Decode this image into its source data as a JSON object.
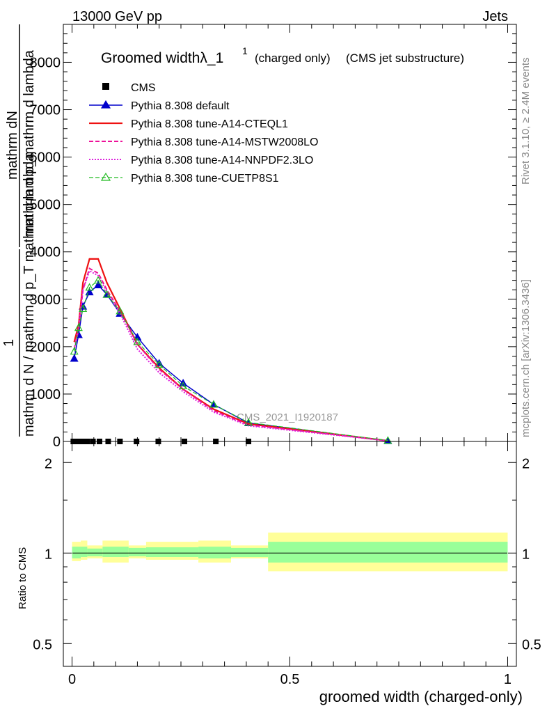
{
  "header": {
    "energy_label": "13000 GeV pp",
    "category_label": "Jets"
  },
  "side_text": {
    "rivet": "Rivet 3.1.10, ≥ 2.4M events",
    "mcplots": "mcplots.cern.ch [arXiv:1306.3436]"
  },
  "colors": {
    "cms": "#000000",
    "default": "#0000cc",
    "a14_cteql1": "#ee1111",
    "a14_mstw": "#ee1199",
    "a14_nnpdf": "#dd22dd",
    "cuetp8s1": "#22bb22",
    "band_inner": "#99ff99",
    "band_outer": "#ffff99"
  },
  "chart_data": [
    {
      "type": "line",
      "title": "Groomed widthλ_1",
      "title_superscript": "1",
      "title_suffix_1": "(charged only)",
      "title_suffix_2": "(CMS jet substructure)",
      "ylabel_numerator": "mathrm dN",
      "ylabel_denominator": "mathrm d p_mathrm d lambda",
      "ylabel_prefix_num": "1",
      "ylabel_prefix_den": "mathrm d N / mathrm d p_T mathrm d lambda",
      "watermark": "CMS_2021_I1920187",
      "xlim": [
        -0.02,
        1.02
      ],
      "ylim": [
        0,
        8800
      ],
      "yticks": [
        0,
        1000,
        2000,
        3000,
        4000,
        5000,
        6000,
        7000,
        8000
      ],
      "ytick_labels": [
        "0",
        "1000",
        "2000",
        "3000",
        "4000",
        "5000",
        "6000",
        "7000",
        "8000"
      ],
      "legend_position": "top-left",
      "legend": [
        {
          "key": "cms",
          "label": "CMS"
        },
        {
          "key": "default",
          "label": "Pythia 8.308 default"
        },
        {
          "key": "a14_cteql1",
          "label": "Pythia 8.308 tune-A14-CTEQL1"
        },
        {
          "key": "a14_mstw",
          "label": "Pythia 8.308 tune-A14-MSTW2008LO"
        },
        {
          "key": "a14_nnpdf",
          "label": "Pythia 8.308 tune-A14-NNPDF2.3LO"
        },
        {
          "key": "cuetp8s1",
          "label": "Pythia 8.308 tune-CUETP8S1"
        }
      ],
      "cms_points": {
        "x": [
          0.003,
          0.012,
          0.023,
          0.035,
          0.048,
          0.063,
          0.083,
          0.11,
          0.148,
          0.198,
          0.258,
          0.33,
          0.405
        ],
        "y": [
          0,
          0,
          0,
          0,
          0,
          0,
          0,
          0,
          0,
          0,
          0,
          0,
          0
        ]
      },
      "series": [
        {
          "key": "default",
          "x": [
            0.005,
            0.015,
            0.025,
            0.04,
            0.06,
            0.08,
            0.11,
            0.15,
            0.2,
            0.255,
            0.325,
            0.405,
            0.725
          ],
          "y": [
            1750,
            2250,
            2850,
            3150,
            3300,
            3100,
            2700,
            2200,
            1650,
            1230,
            780,
            390,
            15
          ]
        },
        {
          "key": "a14_cteql1",
          "x": [
            0.005,
            0.015,
            0.025,
            0.04,
            0.06,
            0.08,
            0.11,
            0.15,
            0.2,
            0.255,
            0.325,
            0.405,
            0.725
          ],
          "y": [
            2100,
            2450,
            3350,
            3850,
            3850,
            3350,
            2800,
            2050,
            1550,
            1100,
            680,
            370,
            15
          ]
        },
        {
          "key": "a14_mstw",
          "x": [
            0.005,
            0.015,
            0.025,
            0.04,
            0.06,
            0.08,
            0.11,
            0.15,
            0.2,
            0.255,
            0.325,
            0.405,
            0.725
          ],
          "y": [
            1950,
            2350,
            3200,
            3650,
            3550,
            3200,
            2750,
            2050,
            1520,
            1100,
            650,
            350,
            15
          ]
        },
        {
          "key": "a14_nnpdf",
          "x": [
            0.005,
            0.015,
            0.025,
            0.04,
            0.06,
            0.08,
            0.11,
            0.15,
            0.2,
            0.255,
            0.325,
            0.405,
            0.725
          ],
          "y": [
            1950,
            2400,
            3200,
            3600,
            3500,
            3150,
            2700,
            1950,
            1450,
            1050,
            620,
            330,
            15
          ]
        },
        {
          "key": "cuetp8s1",
          "x": [
            0.005,
            0.015,
            0.025,
            0.04,
            0.06,
            0.08,
            0.11,
            0.15,
            0.2,
            0.255,
            0.325,
            0.405,
            0.725
          ],
          "y": [
            1900,
            2400,
            2800,
            3250,
            3400,
            3100,
            2750,
            2100,
            1620,
            1170,
            780,
            400,
            20
          ]
        }
      ]
    },
    {
      "type": "area",
      "ylabel": "Ratio to CMS",
      "xlabel": "groomed width (charged-only)",
      "xlim": [
        -0.02,
        1.02
      ],
      "ylim": [
        0.42,
        2.35
      ],
      "log_y": true,
      "yticks": [
        0.5,
        1,
        2
      ],
      "ytick_labels": [
        "0.5",
        "1",
        "2"
      ],
      "xticks": [
        0,
        0.5,
        1
      ],
      "xtick_labels": [
        "0",
        "0.5",
        "1"
      ],
      "reference": 1,
      "bins": [
        {
          "x0": 0.0,
          "x1": 0.02,
          "inner": [
            0.96,
            1.05
          ],
          "outer": [
            0.94,
            1.09
          ]
        },
        {
          "x0": 0.02,
          "x1": 0.035,
          "inner": [
            0.97,
            1.05
          ],
          "outer": [
            0.95,
            1.1
          ]
        },
        {
          "x0": 0.035,
          "x1": 0.07,
          "inner": [
            0.975,
            1.035
          ],
          "outer": [
            0.96,
            1.06
          ]
        },
        {
          "x0": 0.07,
          "x1": 0.13,
          "inner": [
            0.97,
            1.05
          ],
          "outer": [
            0.93,
            1.1
          ]
        },
        {
          "x0": 0.13,
          "x1": 0.17,
          "inner": [
            0.975,
            1.04
          ],
          "outer": [
            0.96,
            1.06
          ]
        },
        {
          "x0": 0.17,
          "x1": 0.29,
          "inner": [
            0.97,
            1.045
          ],
          "outer": [
            0.95,
            1.09
          ]
        },
        {
          "x0": 0.29,
          "x1": 0.365,
          "inner": [
            0.96,
            1.05
          ],
          "outer": [
            0.93,
            1.1
          ]
        },
        {
          "x0": 0.365,
          "x1": 0.45,
          "inner": [
            0.97,
            1.04
          ],
          "outer": [
            0.96,
            1.06
          ]
        },
        {
          "x0": 0.45,
          "x1": 1.0,
          "inner": [
            0.93,
            1.09
          ],
          "outer": [
            0.87,
            1.17
          ]
        }
      ]
    }
  ]
}
